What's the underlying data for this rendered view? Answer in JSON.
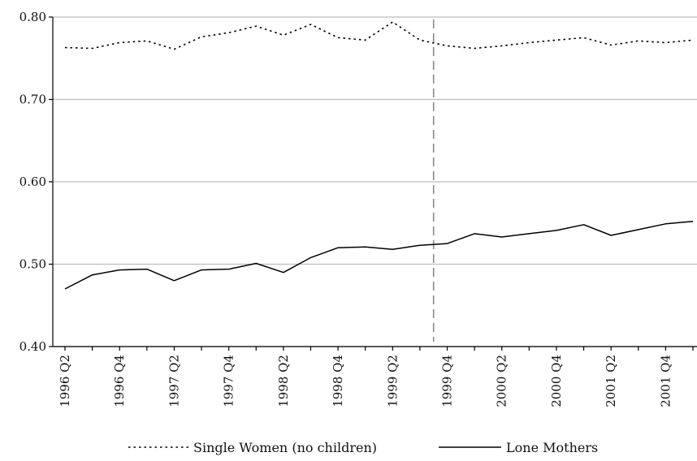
{
  "chart_data": {
    "type": "line",
    "title": "",
    "xlabel": "",
    "ylabel": "",
    "ylim": [
      0.4,
      0.8
    ],
    "yticks": [
      "0.40",
      "0.50",
      "0.60",
      "0.70",
      "0.80"
    ],
    "grid": "horizontal",
    "legend_position": "bottom",
    "categories": [
      "1996 Q2",
      "1996 Q3",
      "1996 Q4",
      "1997 Q1",
      "1997 Q2",
      "1997 Q3",
      "1997 Q4",
      "1998 Q1",
      "1998 Q2",
      "1998 Q3",
      "1998 Q4",
      "1999 Q1",
      "1999 Q2",
      "1999 Q3",
      "1999 Q4",
      "2000 Q1",
      "2000 Q2",
      "2000 Q3",
      "2000 Q4",
      "2001 Q1",
      "2001 Q2",
      "2001 Q3",
      "2001 Q4",
      "2002 Q1"
    ],
    "xtick_labels": [
      {
        "index": 0,
        "label": "1996 Q2"
      },
      {
        "index": 2,
        "label": "1996 Q4"
      },
      {
        "index": 4,
        "label": "1997 Q2"
      },
      {
        "index": 6,
        "label": "1997 Q4"
      },
      {
        "index": 8,
        "label": "1998 Q2"
      },
      {
        "index": 10,
        "label": "1998 Q4"
      },
      {
        "index": 12,
        "label": "1999 Q2"
      },
      {
        "index": 14,
        "label": "1999 Q4"
      },
      {
        "index": 16,
        "label": "2000 Q2"
      },
      {
        "index": 18,
        "label": "2000 Q4"
      },
      {
        "index": 20,
        "label": "2001 Q2"
      },
      {
        "index": 22,
        "label": "2001 Q4"
      }
    ],
    "vline_after_index": 13,
    "series": [
      {
        "name": "Single Women (no children)",
        "style": "dotted",
        "color": "#000000",
        "values": [
          0.763,
          0.762,
          0.769,
          0.771,
          0.761,
          0.776,
          0.781,
          0.789,
          0.778,
          0.791,
          0.775,
          0.772,
          0.794,
          0.772,
          0.765,
          0.762,
          0.765,
          0.769,
          0.772,
          0.775,
          0.766,
          0.771,
          0.769,
          0.772
        ]
      },
      {
        "name": "Lone Mothers",
        "style": "solid",
        "color": "#000000",
        "values": [
          0.47,
          0.487,
          0.493,
          0.494,
          0.48,
          0.493,
          0.494,
          0.501,
          0.49,
          0.508,
          0.52,
          0.521,
          0.518,
          0.523,
          0.525,
          0.537,
          0.533,
          0.537,
          0.541,
          0.548,
          0.535,
          0.542,
          0.549,
          0.552
        ]
      }
    ],
    "colors": {
      "grid": "#bdbdbd",
      "vline": "#888888",
      "axis": "#000000"
    }
  }
}
